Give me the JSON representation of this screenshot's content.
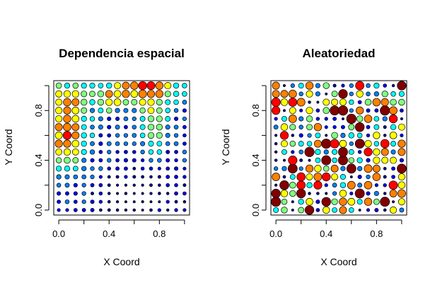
{
  "colors": {
    "ramp": [
      "#00008F",
      "#0000FF",
      "#0080FF",
      "#00FFFF",
      "#80FF80",
      "#FFFF00",
      "#FF8000",
      "#FF0000",
      "#800000"
    ],
    "point_stroke": "#000000",
    "frame": "#000000",
    "background": "#ffffff"
  },
  "chart_data": [
    {
      "type": "scatter",
      "title": "Dependencia espacial",
      "xlabel": "X Coord",
      "ylabel": "Y Coord",
      "xlim": [
        -0.04,
        1.04
      ],
      "ylim": [
        -0.04,
        1.04
      ],
      "x_ticks": [
        0.0,
        0.4,
        0.8
      ],
      "y_ticks": [
        0.0,
        0.4,
        0.8
      ],
      "x_tick_labels": [
        "0.0",
        "0.4",
        "0.8"
      ],
      "y_tick_labels": [
        "0.0",
        "0.4",
        "0.8"
      ],
      "x_minor_ticks": [
        0.2,
        0.6,
        1.0
      ],
      "y_minor_ticks": [
        0.2,
        0.6,
        1.0
      ],
      "grid": false,
      "encoding": "point size and color increase with the observed value (blue = low, dark red = high)",
      "grid_points": {
        "nx": 16,
        "ny": 16,
        "x_range": [
          0,
          1
        ],
        "y_range": [
          0,
          1
        ]
      },
      "value_pattern": "spatially_dependent"
    },
    {
      "type": "scatter",
      "title": "Aleatoriedad",
      "xlabel": "X Coord",
      "ylabel": "Y Coord",
      "xlim": [
        -0.04,
        1.04
      ],
      "ylim": [
        -0.04,
        1.04
      ],
      "x_ticks": [
        0.0,
        0.4,
        0.8
      ],
      "y_ticks": [
        0.0,
        0.4,
        0.8
      ],
      "x_tick_labels": [
        "0.0",
        "0.4",
        "0.8"
      ],
      "y_tick_labels": [
        "0.0",
        "0.4",
        "0.8"
      ],
      "x_minor_ticks": [
        0.2,
        0.6,
        1.0
      ],
      "y_minor_ticks": [
        0.2,
        0.6,
        1.0
      ],
      "grid": false,
      "encoding": "point size and color increase with the observed value (blue = low, dark red = high)",
      "grid_points": {
        "nx": 16,
        "ny": 16,
        "x_range": [
          0,
          1
        ],
        "y_range": [
          0,
          1
        ]
      },
      "value_pattern": "random"
    }
  ]
}
